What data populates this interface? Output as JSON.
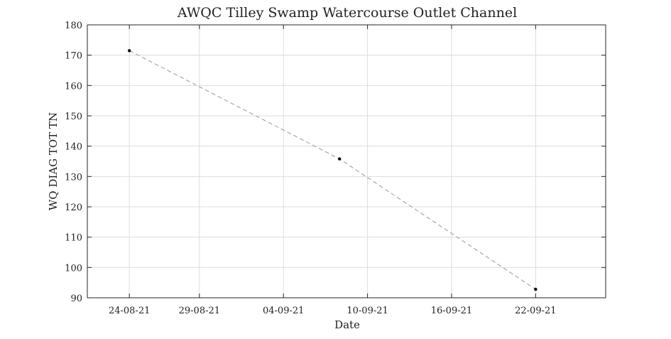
{
  "chart_data": {
    "type": "line",
    "title": "AWQC Tilley Swamp Watercourse Outlet Channel",
    "xlabel": "Date",
    "ylabel": "WQ DIAG TOT TN",
    "x_ticks": [
      "24-08-21",
      "29-08-21",
      "04-09-21",
      "10-09-21",
      "16-09-21",
      "22-09-21"
    ],
    "y_ticks": [
      "90",
      "100",
      "110",
      "120",
      "130",
      "140",
      "150",
      "160",
      "170",
      "180"
    ],
    "ylim": [
      90,
      180
    ],
    "xlim": [
      "2021-08-21",
      "2021-09-27"
    ],
    "grid": true,
    "series": [
      {
        "x": [
          "2021-08-24",
          "2021-09-08",
          "2021-09-22"
        ],
        "y": [
          171.5,
          135.8,
          92.8
        ]
      }
    ],
    "line_style": "dashed",
    "line_color": "#a0a0a0",
    "marker_color": "#000000"
  }
}
